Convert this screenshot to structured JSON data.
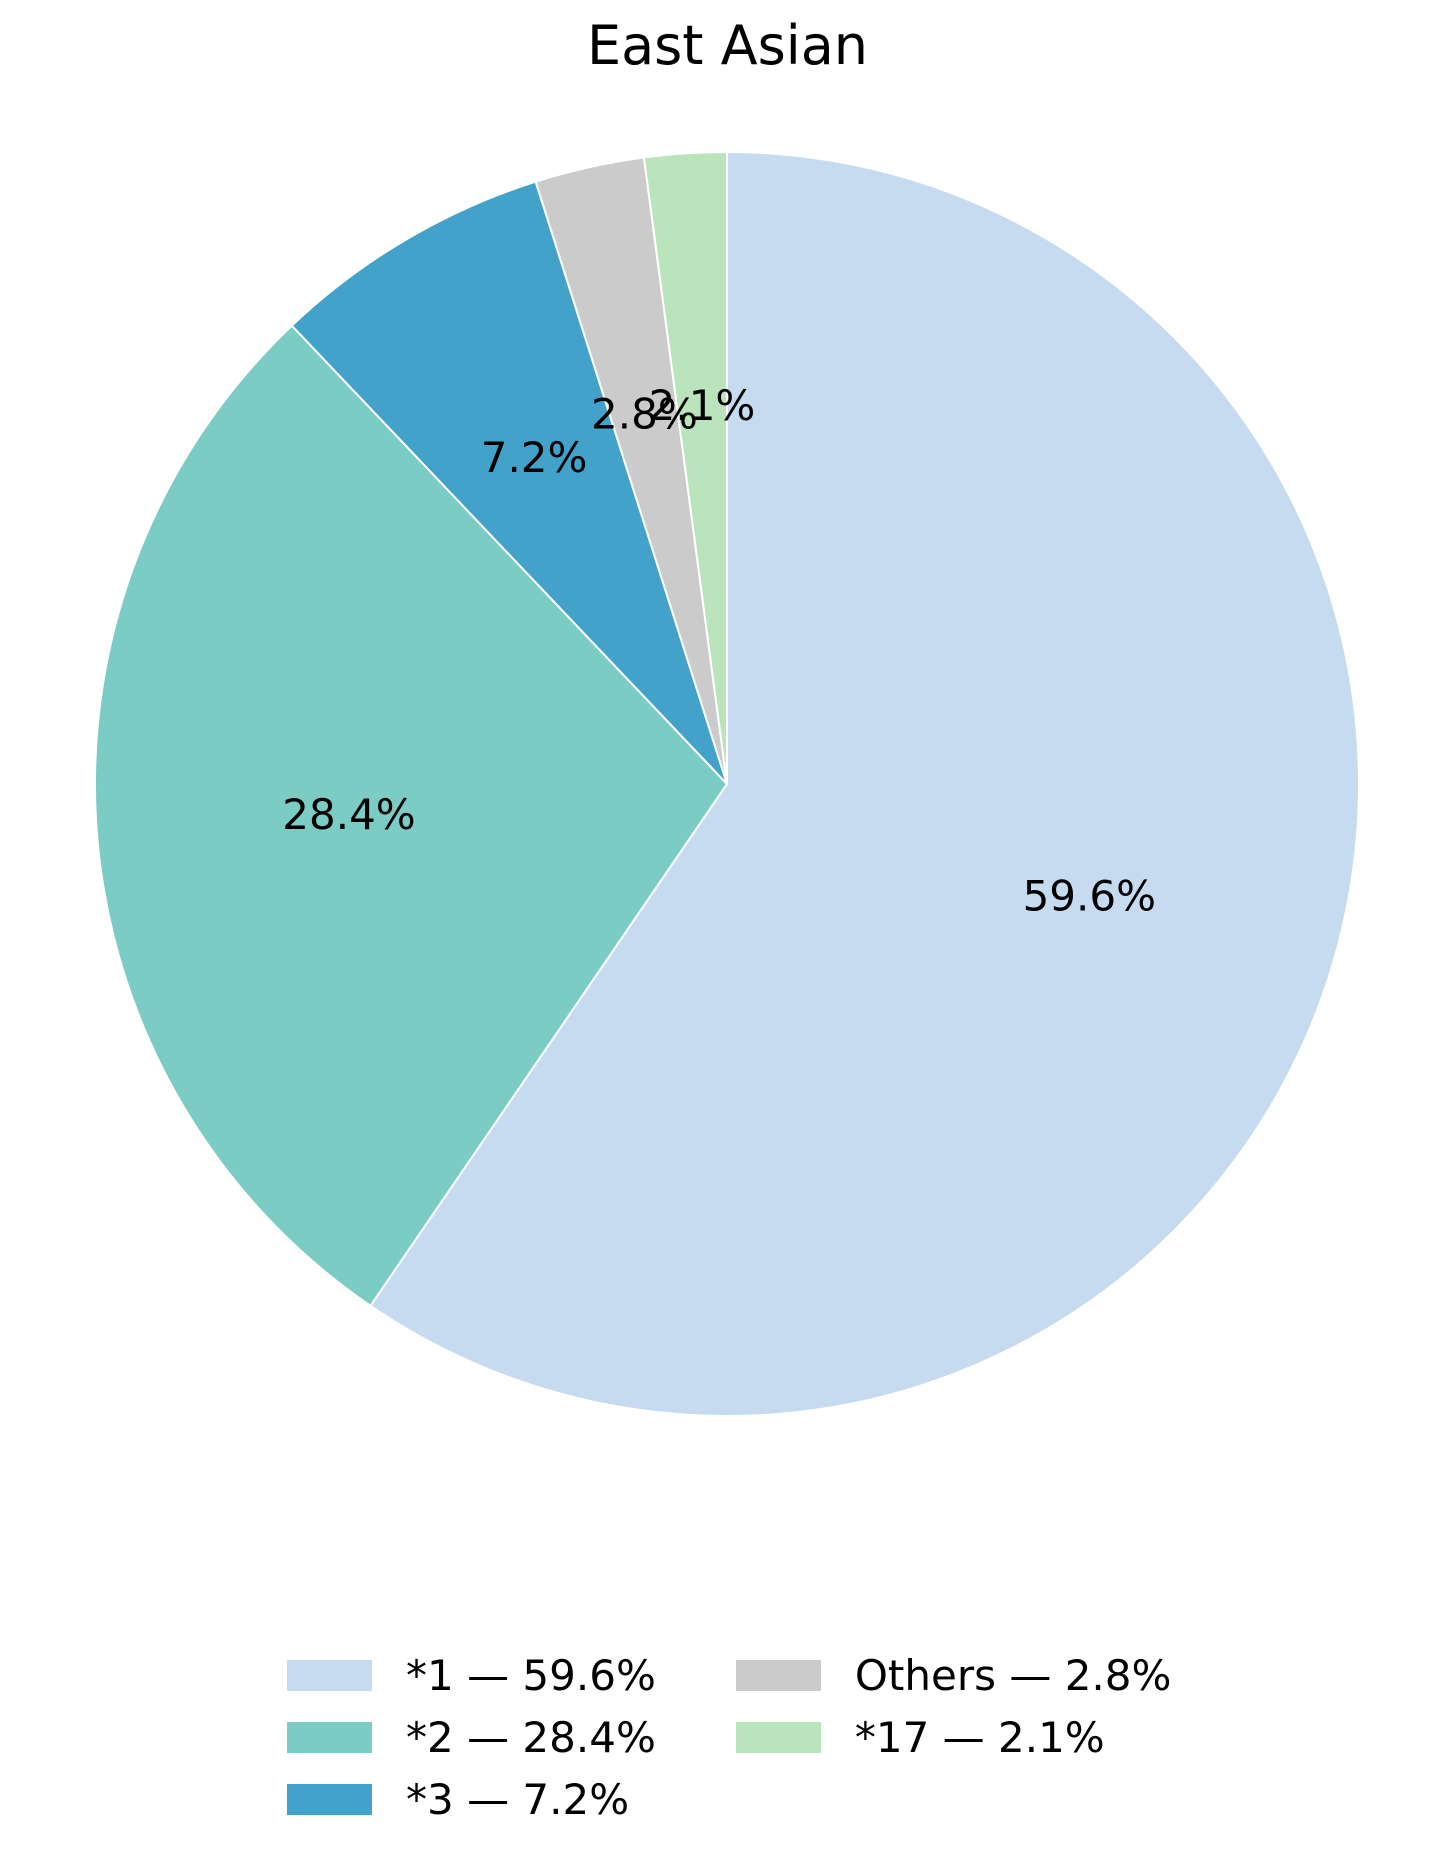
{
  "chart_data": {
    "type": "pie",
    "title": "East Asian",
    "startangle": 90,
    "counterclock": false,
    "pctdistance": 0.6,
    "legend_position": "lower center",
    "legend_ncol": 2,
    "wedge_edge_color": "#ffffff",
    "slices": [
      {
        "label": "*1",
        "value": 59.6,
        "pct_text": "59.6%",
        "legend_text": "*1 — 59.6%",
        "color": "#c6dbef"
      },
      {
        "label": "*2",
        "value": 28.4,
        "pct_text": "28.4%",
        "legend_text": "*2 — 28.4%",
        "color": "#7bccc4"
      },
      {
        "label": "*3",
        "value": 7.2,
        "pct_text": "7.2%",
        "legend_text": "*3 — 7.2%",
        "color": "#43a2ca"
      },
      {
        "label": "Others",
        "value": 2.8,
        "pct_text": "2.8%",
        "legend_text": "Others — 2.8%",
        "color": "#cbcbcb"
      },
      {
        "label": "*17",
        "value": 2.1,
        "pct_text": "2.1%",
        "legend_text": "*17 — 2.1%",
        "color": "#bae4bc"
      }
    ]
  }
}
